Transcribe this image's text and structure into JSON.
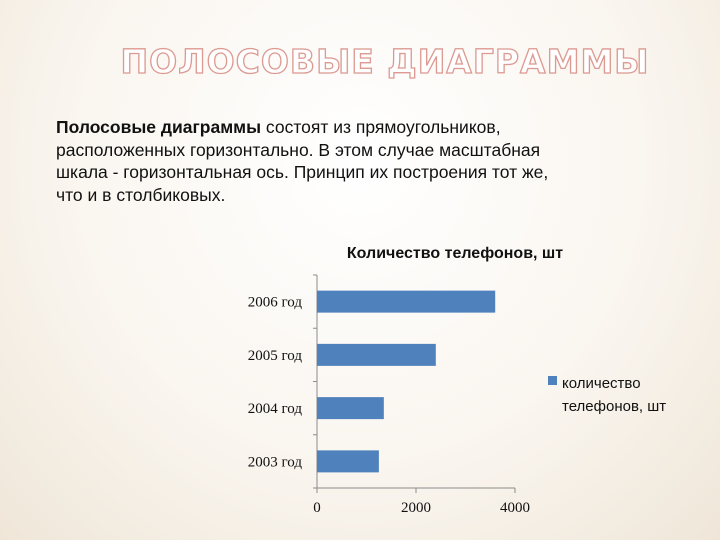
{
  "slide": {
    "title": "ПОЛОСОВЫЕ ДИАГРАММЫ",
    "paragraph_bold": "Полосовые диаграммы",
    "paragraph_rest": " состоят из прямоугольников, расположенных горизонтально. В этом случае масштабная шкала - горизонтальная ось. Принцип их построения тот же, что и в столбиковых."
  },
  "colors": {
    "bar": "#4f81bd",
    "axis": "#8c8c8c",
    "title_outline": "#dc9a92"
  },
  "chart_data": {
    "type": "bar",
    "orientation": "horizontal",
    "title": "Количество телефонов, шт",
    "categories": [
      "2006 год",
      "2005 год",
      "2004 год",
      "2003 год"
    ],
    "series": [
      {
        "name": "количество телефонов, шт",
        "values": [
          3600,
          2400,
          1350,
          1250
        ]
      }
    ],
    "xlim": [
      0,
      4000
    ],
    "xticks": [
      "0",
      "2000",
      "4000"
    ],
    "grid": false,
    "legend_position": "right",
    "legend_lines": [
      "количество",
      "телефонов, шт"
    ]
  }
}
